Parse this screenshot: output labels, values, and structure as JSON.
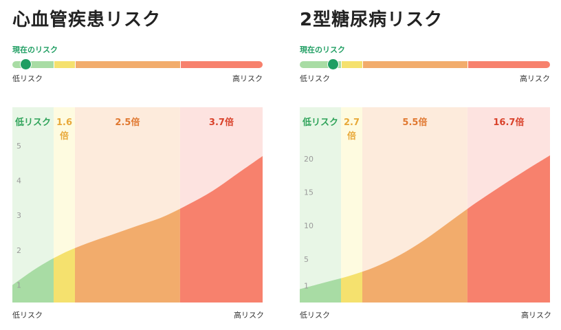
{
  "labels": {
    "current_risk": "現在のリスク",
    "low": "低リスク",
    "high": "高リスク"
  },
  "colors": {
    "low": "#a8dca4",
    "mid": "#f5e16e",
    "high": "#f2ac6c",
    "very_high": "#f7816d",
    "low_bg": "#e8f6e6",
    "mid_bg": "#fefbe0",
    "high_bg": "#fdebdc",
    "very_high_bg": "#fde3e0",
    "marker": "#1f9e62"
  },
  "chart_data": [
    {
      "type": "area",
      "title": "心血管疾患リスク",
      "current_risk_position": 0.03,
      "bands": [
        {
          "label": "低リスク",
          "end": 0.165,
          "color": "low"
        },
        {
          "label": "1.6\n倍",
          "end": 0.25,
          "color": "mid"
        },
        {
          "label": "2.5倍",
          "end": 0.67,
          "color": "high"
        },
        {
          "label": "3.7倍",
          "end": 1.0,
          "color": "very_high"
        }
      ],
      "x": [
        0,
        0.1,
        0.2,
        0.3,
        0.4,
        0.5,
        0.6,
        0.7,
        0.8,
        0.9,
        1.0
      ],
      "y": [
        1.0,
        1.5,
        1.9,
        2.2,
        2.45,
        2.7,
        2.95,
        3.3,
        3.7,
        4.2,
        4.7
      ],
      "yticks": [
        1,
        2,
        3,
        4,
        5
      ],
      "ylim": [
        0.5,
        6.1
      ]
    },
    {
      "type": "area",
      "title": "2型糖尿病リスク",
      "current_risk_position": 0.11,
      "bands": [
        {
          "label": "低リスク",
          "end": 0.165,
          "color": "low"
        },
        {
          "label": "2.7\n倍",
          "end": 0.25,
          "color": "mid"
        },
        {
          "label": "5.5倍",
          "end": 0.67,
          "color": "high"
        },
        {
          "label": "16.7倍",
          "end": 1.0,
          "color": "very_high"
        }
      ],
      "x": [
        0,
        0.1,
        0.2,
        0.3,
        0.4,
        0.5,
        0.6,
        0.7,
        0.8,
        0.9,
        1.0
      ],
      "y": [
        0.5,
        1.5,
        2.5,
        3.8,
        5.6,
        7.9,
        10.6,
        13.3,
        15.8,
        18.2,
        20.5
      ],
      "yticks": [
        1,
        5,
        10,
        15,
        20
      ],
      "ylim": [
        -1.5,
        27.7
      ]
    }
  ]
}
